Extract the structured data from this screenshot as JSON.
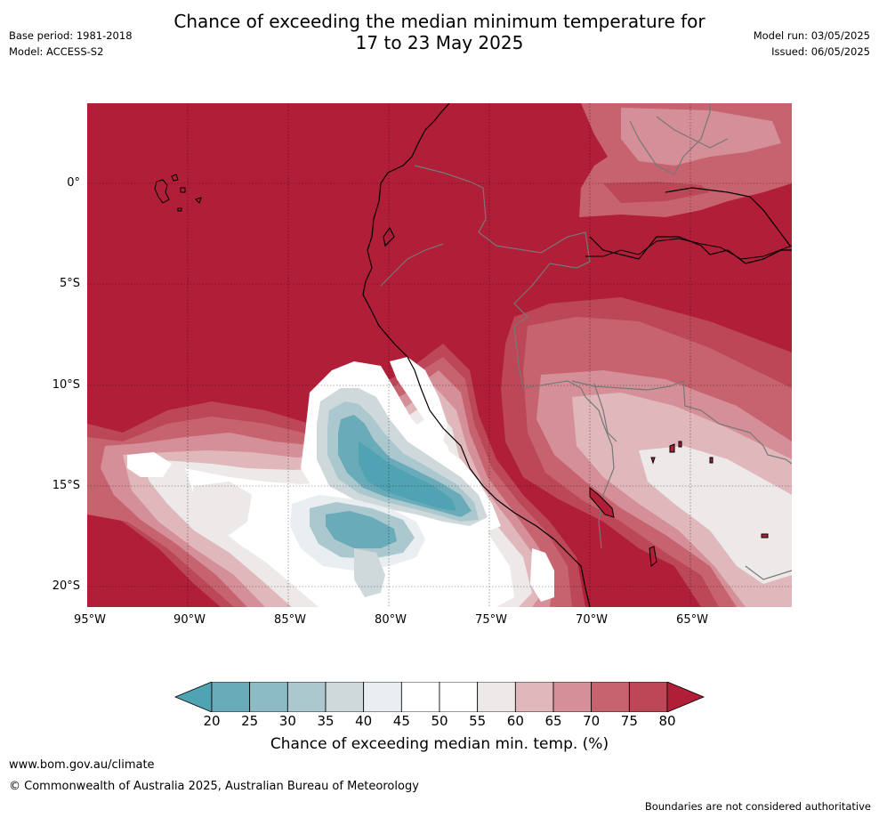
{
  "title": {
    "line1": "Chance of exceeding the median minimum temperature for",
    "line2": "17 to 23 May 2025"
  },
  "meta": {
    "base_period": "Base period: 1981-2018",
    "model": "Model: ACCESS-S2",
    "model_run": "Model run: 03/05/2025",
    "issued": "Issued: 06/05/2025"
  },
  "map": {
    "lat_labels": [
      "0°",
      "5°S",
      "10°S",
      "15°S",
      "20°S"
    ],
    "lon_labels": [
      "95°W",
      "90°W",
      "85°W",
      "80°W",
      "75°W",
      "70°W",
      "65°W"
    ]
  },
  "colorbar": {
    "ticks": [
      "20",
      "25",
      "30",
      "35",
      "40",
      "45",
      "50",
      "55",
      "60",
      "65",
      "70",
      "75",
      "80"
    ],
    "colors": [
      "#4fa3b3",
      "#6aabb9",
      "#8cbac5",
      "#aac8cd",
      "#cfd9dc",
      "#e9eef1",
      "#ffffff",
      "#ffffff",
      "#ece9e8",
      "#e0b8bc",
      "#d58f98",
      "#c7636f",
      "#bb4757",
      "#b11e38"
    ],
    "title": "Chance of exceeding median min. temp. (%)"
  },
  "footer": {
    "website": "www.bom.gov.au/climate",
    "copyright": "© Commonwealth of Australia 2025, Australian Bureau of Meteorology",
    "disclaimer": "Boundaries are not considered authoritative"
  }
}
